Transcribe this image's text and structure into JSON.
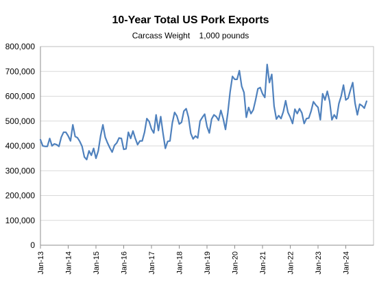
{
  "chart_data": {
    "type": "line",
    "title": "10-Year Total US Pork Exports",
    "subtitle": "Carcass Weight    1,000 pounds",
    "xlabel": "",
    "ylabel": "",
    "ylim": [
      0,
      800000
    ],
    "yticks": [
      0,
      100000,
      200000,
      300000,
      400000,
      500000,
      600000,
      700000,
      800000
    ],
    "ytick_labels": [
      "0",
      "100,000",
      "200,000",
      "300,000",
      "400,000",
      "500,000",
      "600,000",
      "700,000",
      "800,000"
    ],
    "xtick_labels": [
      "Jan-13",
      "Jan-14",
      "Jan-15",
      "Jan-16",
      "Jan-17",
      "Jan-18",
      "Jan-19",
      "Jan-20",
      "Jan-21",
      "Jan-22",
      "Jan-23",
      "Jan-24"
    ],
    "grid": true,
    "legend": "none",
    "series_color": "#4f81bd",
    "x_start": "2013-01",
    "x_end": "2024-12",
    "values": [
      425000,
      400000,
      398000,
      398000,
      430000,
      400000,
      408000,
      405000,
      398000,
      435000,
      455000,
      455000,
      440000,
      420000,
      485000,
      438000,
      433000,
      418000,
      398000,
      355000,
      345000,
      380000,
      362000,
      390000,
      350000,
      380000,
      440000,
      485000,
      435000,
      412000,
      392000,
      375000,
      402000,
      412000,
      432000,
      430000,
      386000,
      388000,
      455000,
      430000,
      460000,
      430000,
      405000,
      420000,
      420000,
      455000,
      510000,
      498000,
      468000,
      452000,
      525000,
      462000,
      518000,
      450000,
      390000,
      418000,
      420000,
      492000,
      535000,
      520000,
      488000,
      495000,
      540000,
      550000,
      515000,
      450000,
      428000,
      440000,
      432000,
      500000,
      515000,
      528000,
      478000,
      452000,
      508000,
      525000,
      518000,
      503000,
      543000,
      510000,
      466000,
      533000,
      618000,
      680000,
      668000,
      668000,
      703000,
      640000,
      615000,
      515000,
      555000,
      530000,
      545000,
      585000,
      630000,
      635000,
      610000,
      595000,
      728000,
      655000,
      688000,
      560000,
      508000,
      522000,
      510000,
      538000,
      582000,
      535000,
      515000,
      490000,
      548000,
      530000,
      550000,
      533000,
      490000,
      510000,
      512000,
      540000,
      578000,
      565000,
      555000,
      505000,
      610000,
      585000,
      620000,
      580000,
      505000,
      525000,
      510000,
      570000,
      600000,
      645000,
      585000,
      592000,
      625000,
      655000,
      572000,
      525000,
      568000,
      562000,
      552000,
      580000
    ]
  }
}
